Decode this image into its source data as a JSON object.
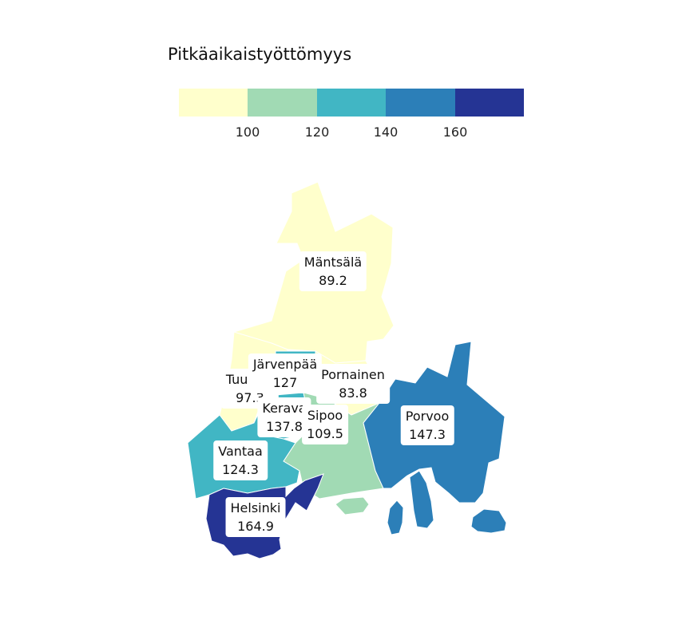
{
  "legend": {
    "title": "Pitkäaikaistyöttömyys",
    "colors": [
      "#ffffcc",
      "#a1dab4",
      "#41b6c4",
      "#2c7fb8",
      "#253494"
    ],
    "ticks": [
      "100",
      "120",
      "140",
      "160"
    ]
  },
  "municipalities": [
    {
      "id": "mantsala",
      "name": "Mäntsälä",
      "value": "89.2",
      "color": "#ffffcc"
    },
    {
      "id": "pornainen",
      "name": "Pornainen",
      "value": "83.8",
      "color": "#ffffcc"
    },
    {
      "id": "tuusula",
      "name": "Tuusula",
      "value": "97.3",
      "color": "#ffffcc"
    },
    {
      "id": "jarvenpaa",
      "name": "Järvenpää",
      "value": "127",
      "color": "#41b6c4"
    },
    {
      "id": "kerava",
      "name": "Kerava",
      "value": "137.8",
      "color": "#41b6c4"
    },
    {
      "id": "sipoo",
      "name": "Sipoo",
      "value": "109.5",
      "color": "#a1dab4"
    },
    {
      "id": "porvoo",
      "name": "Porvoo",
      "value": "147.3",
      "color": "#2c7fb8"
    },
    {
      "id": "vantaa",
      "name": "Vantaa",
      "value": "124.3",
      "color": "#41b6c4"
    },
    {
      "id": "helsinki",
      "name": "Helsinki",
      "value": "164.9",
      "color": "#253494"
    }
  ]
}
